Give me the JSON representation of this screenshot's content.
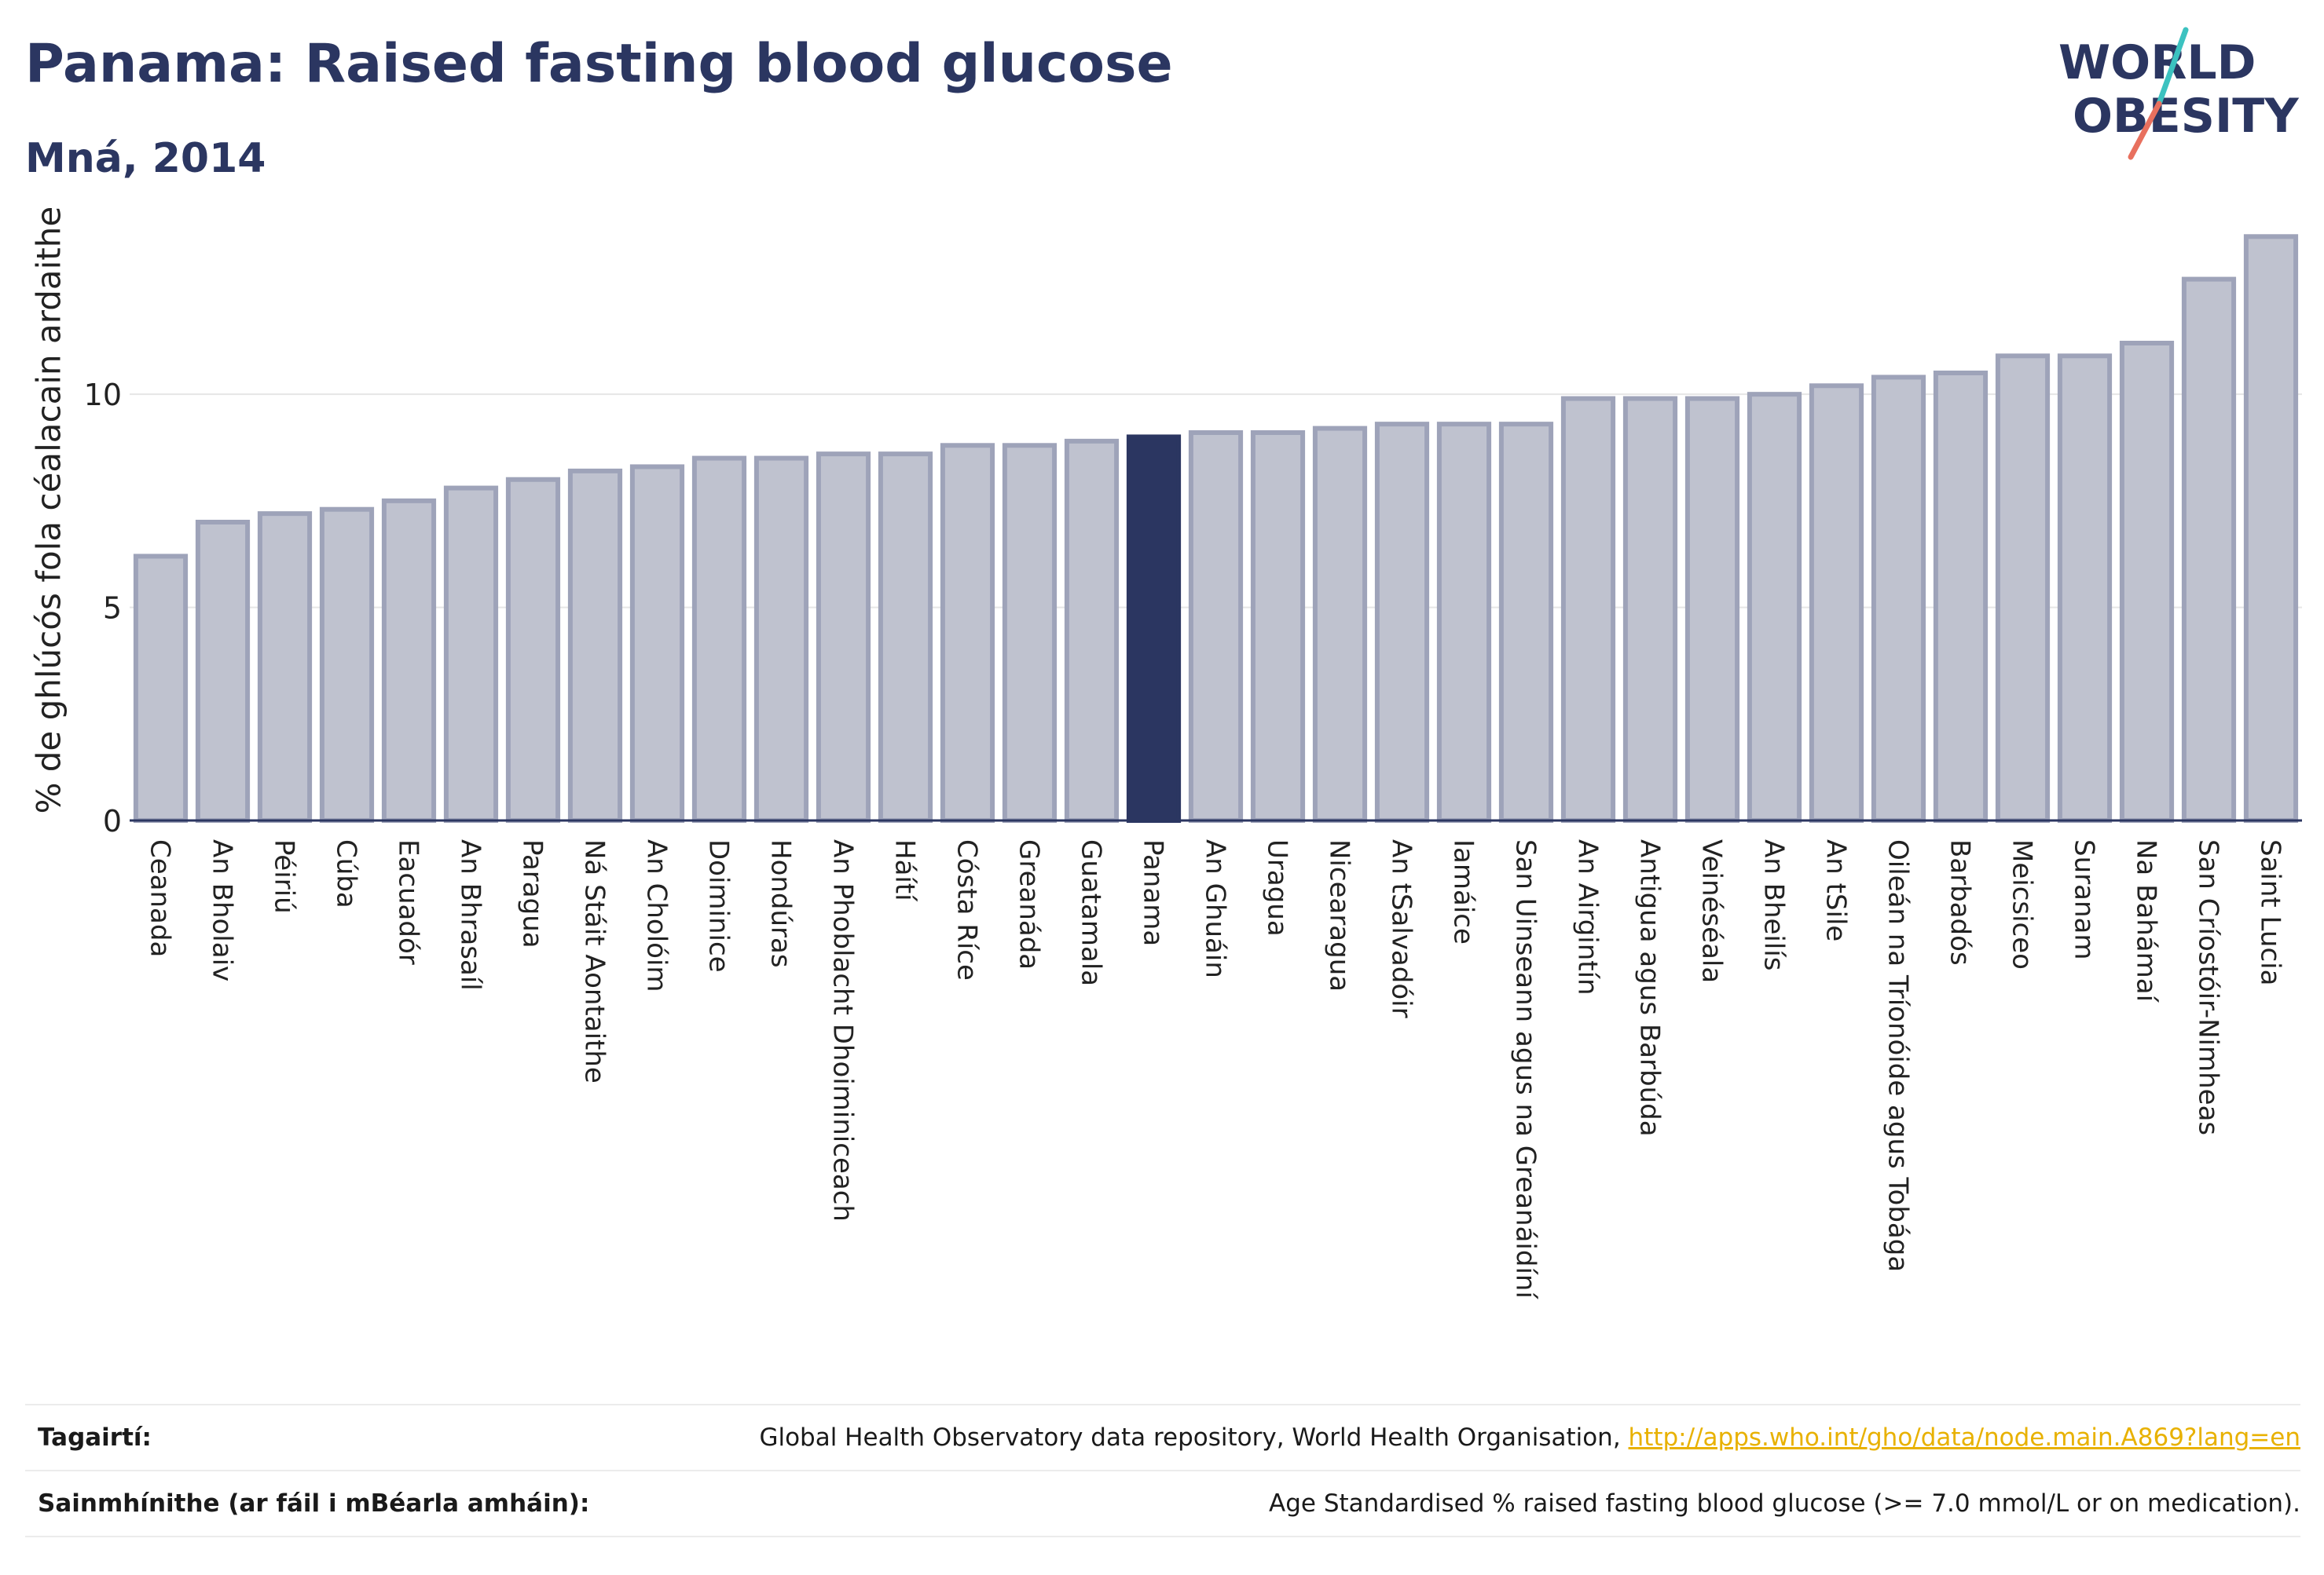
{
  "title": "Panama: Raised fasting blood glucose",
  "subtitle": "Mná, 2014",
  "logo": {
    "line1": "WORLD",
    "line2": "OBESITY"
  },
  "references": {
    "label": "Tagairtí:",
    "text": "Global Health Observatory data repository, World Health Organisation,",
    "link": "http://apps.who.int/gho/data/node.main.A869?lang=en"
  },
  "definitions": {
    "label": "Sainmhínithe (ar fáil i mBéarla amháin):",
    "text": "Age Standardised % raised fasting blood glucose (>= 7.0 mmol/L or on medication)."
  },
  "colors": {
    "bar": "#bfc2cf",
    "bar_edge": "#9ea3b9",
    "highlight": "#2b3661",
    "title": "#2b3661"
  },
  "chart_data": {
    "type": "bar",
    "title": "Panama: Raised fasting blood glucose",
    "subtitle": "Mná, 2014",
    "ylabel": "% de ghlúcós fola céalacain ardaithe",
    "ylim": [
      0,
      14
    ],
    "yticks": [
      0,
      5,
      10
    ],
    "grid": true,
    "highlight": "Panama",
    "categories": [
      "Ceanada",
      "An Bholaiv",
      "Péiriú",
      "Cúba",
      "Eacuadór",
      "An Bhrasaíl",
      "Paragua",
      "Ná Stáit Aontaithe",
      "An Cholóim",
      "Doiminice",
      "Hondúras",
      "An Phoblacht Dhoiminiceach",
      "Háítí",
      "Cósta Ríce",
      "Greanáda",
      "Guatamala",
      "Panama",
      "An Ghuáin",
      "Uragua",
      "Nicearagua",
      "An tSalvadóir",
      "Iamáice",
      "San Uinseann agus na Greanáidíní",
      "An Airgintín",
      "Antigua agus Barbúda",
      "Veinéséala",
      "An Bheilís",
      "An tSile",
      "Oileán na Tríonóide agus Tobága",
      "Barbadós",
      "Meicsiceo",
      "Suranam",
      "Na Bahámaí",
      "San Críostóir-Nimheas",
      "Saint Lucia"
    ],
    "values": [
      6.2,
      7.0,
      7.2,
      7.3,
      7.5,
      7.8,
      8.0,
      8.2,
      8.3,
      8.5,
      8.5,
      8.6,
      8.6,
      8.8,
      8.8,
      8.9,
      9.0,
      9.1,
      9.1,
      9.2,
      9.3,
      9.3,
      9.3,
      9.9,
      9.9,
      9.9,
      10.0,
      10.2,
      10.4,
      10.5,
      10.9,
      10.9,
      11.2,
      12.7,
      13.7
    ]
  }
}
